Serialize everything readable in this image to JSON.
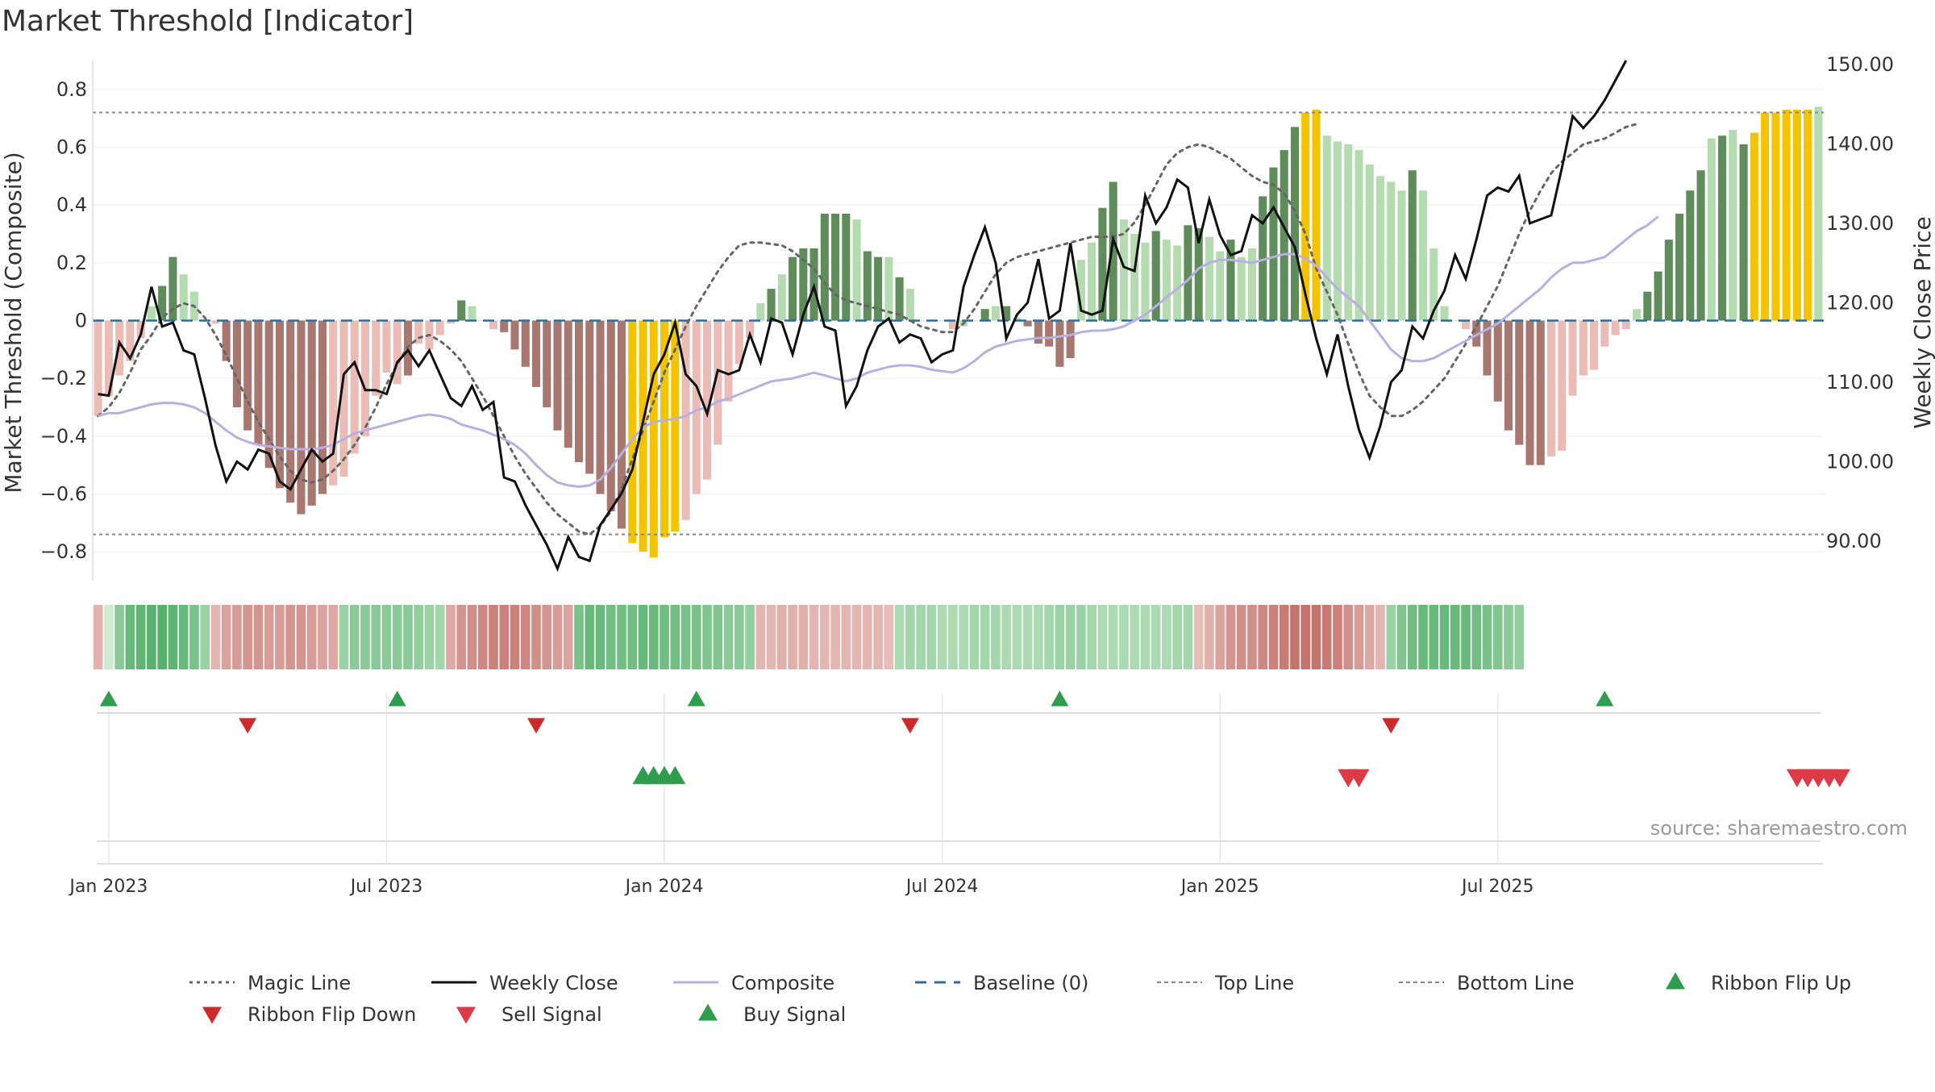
{
  "chart_data": {
    "type": "bar",
    "title": "Market Threshold [Indicator]",
    "ylabel": "Market Threshold (Composite)",
    "y2label": "Weekly Close Price",
    "source": "source: sharemaestro.com",
    "ylim": [
      -0.9,
      0.9
    ],
    "y2lim": [
      85,
      150.5
    ],
    "y_ticks": [
      -0.8,
      -0.6,
      -0.4,
      -0.2,
      0,
      0.2,
      0.4,
      0.6,
      0.8
    ],
    "y_tick_labels": [
      "−0.8",
      "−0.6",
      "−0.4",
      "−0.2",
      "0",
      "0.2",
      "0.4",
      "0.6",
      "0.8"
    ],
    "y2_ticks": [
      90,
      100,
      110,
      120,
      130,
      140,
      150
    ],
    "y2_tick_labels": [
      "90.00",
      "100.00",
      "110.00",
      "120.00",
      "130.00",
      "140.00",
      "150.00"
    ],
    "x_ticks": [
      {
        "label": "Jan 2023",
        "week": 1
      },
      {
        "label": "Jul 2023",
        "week": 27
      },
      {
        "label": "Jan 2024",
        "week": 53
      },
      {
        "label": "Jul 2024",
        "week": 79
      },
      {
        "label": "Jan 2025",
        "week": 105
      },
      {
        "label": "Jul 2025",
        "week": 131
      }
    ],
    "top_line": 0.72,
    "bottom_line": -0.74,
    "baseline": 0,
    "colors": {
      "pos_strong": "#5e8c5a",
      "pos_weak": "#b5dcb0",
      "neg_strong": "#a87870",
      "neg_weak": "#ebbcb5",
      "extreme": "#f5c400",
      "weekly_close": "#111111",
      "composite": "#b8b0e0",
      "magic_line": "#666666",
      "baseline": "#2e6e99",
      "threshold_lines": "#888888",
      "flip_up": "#2e9e4e",
      "flip_down": "#cc2b2b",
      "sell": "#dd3a48",
      "buy": "#2e9e4e"
    },
    "bars": [
      -0.33,
      -0.26,
      -0.19,
      -0.14,
      -0.06,
      0.05,
      0.12,
      0.22,
      0.16,
      0.1,
      0,
      -0.01,
      -0.14,
      -0.3,
      -0.38,
      -0.43,
      -0.51,
      -0.58,
      -0.63,
      -0.67,
      -0.64,
      -0.6,
      -0.57,
      -0.54,
      -0.46,
      -0.4,
      -0.26,
      -0.18,
      -0.22,
      -0.19,
      -0.08,
      -0.1,
      -0.05,
      -0.01,
      0.07,
      0.05,
      0,
      -0.03,
      -0.04,
      -0.1,
      -0.16,
      -0.23,
      -0.3,
      -0.38,
      -0.44,
      -0.49,
      -0.53,
      -0.6,
      -0.66,
      -0.72,
      -0.77,
      -0.8,
      -0.82,
      -0.75,
      -0.73,
      -0.69,
      -0.6,
      -0.55,
      -0.43,
      -0.28,
      -0.15,
      -0.06,
      0.06,
      0.11,
      0.16,
      0.22,
      0.25,
      0.25,
      0.37,
      0.37,
      0.37,
      0.35,
      0.24,
      0.22,
      0.22,
      0.15,
      0.11,
      0,
      0,
      0,
      -0.03,
      -0.02,
      0,
      0.04,
      0.05,
      0.05,
      0.01,
      -0.02,
      -0.08,
      -0.09,
      -0.16,
      -0.13,
      0.21,
      0.27,
      0.39,
      0.48,
      0.35,
      0.3,
      0.27,
      0.31,
      0.28,
      0.26,
      0.33,
      0.32,
      0.29,
      0.24,
      0.28,
      0.22,
      0.25,
      0.43,
      0.53,
      0.59,
      0.67,
      0.72,
      0.73,
      0.64,
      0.62,
      0.61,
      0.59,
      0.54,
      0.5,
      0.48,
      0.45,
      0.52,
      0.45,
      0.25,
      0.05,
      0,
      -0.03,
      -0.09,
      -0.19,
      -0.28,
      -0.38,
      -0.43,
      -0.5,
      -0.5,
      -0.47,
      -0.45,
      -0.26,
      -0.19,
      -0.17,
      -0.09,
      -0.05,
      -0.03,
      0.04,
      0.1,
      0.17,
      0.28,
      0.37,
      0.45,
      0.52,
      0.63,
      0.64,
      0.66,
      0.61,
      0.65,
      0.72,
      0.72,
      0.73,
      0.73,
      0.73,
      0.74
    ],
    "bar_type": [
      "nw",
      "nw",
      "nw",
      "nw",
      "nw",
      "pw",
      "ps",
      "ps",
      "pw",
      "pw",
      "pw",
      "nw",
      "ns",
      "ns",
      "ns",
      "ns",
      "ns",
      "ns",
      "ns",
      "ns",
      "ns",
      "ns",
      "nw",
      "nw",
      "nw",
      "nw",
      "nw",
      "nw",
      "nw",
      "ns",
      "nw",
      "nw",
      "nw",
      "nw",
      "ps",
      "pw",
      "pw",
      "nw",
      "ns",
      "ns",
      "ns",
      "ns",
      "ns",
      "ns",
      "ns",
      "ns",
      "ns",
      "ns",
      "ns",
      "ns",
      "ex",
      "ex",
      "ex",
      "ex",
      "ex",
      "nw",
      "nw",
      "nw",
      "nw",
      "nw",
      "nw",
      "nw",
      "pw",
      "ps",
      "pw",
      "ps",
      "ps",
      "ps",
      "ps",
      "ps",
      "ps",
      "pw",
      "ps",
      "ps",
      "pw",
      "ps",
      "pw",
      "pw",
      "pw",
      "nw",
      "nw",
      "pw",
      "pw",
      "ps",
      "pw",
      "ps",
      "pw",
      "ns",
      "ns",
      "ns",
      "ns",
      "ns",
      "pw",
      "pw",
      "ps",
      "ps",
      "pw",
      "pw",
      "pw",
      "ps",
      "pw",
      "pw",
      "ps",
      "ps",
      "pw",
      "pw",
      "ps",
      "pw",
      "pw",
      "ps",
      "ps",
      "ps",
      "ps",
      "ex",
      "ex",
      "pw",
      "pw",
      "pw",
      "pw",
      "pw",
      "pw",
      "pw",
      "pw",
      "ps",
      "pw",
      "pw",
      "pw",
      "pw",
      "nw",
      "ns",
      "ns",
      "ns",
      "ns",
      "ns",
      "ns",
      "ns",
      "nw",
      "nw",
      "nw",
      "nw",
      "nw",
      "nw",
      "nw",
      "nw",
      "pw",
      "ps",
      "ps",
      "ps",
      "ps",
      "ps",
      "ps",
      "pw",
      "ps",
      "pw",
      "ps",
      "ex",
      "ex",
      "ex",
      "ex",
      "ex",
      "ex"
    ],
    "weekly_close": [
      108.5,
      108.3,
      115.0,
      113.0,
      116.0,
      122.0,
      117.0,
      117.5,
      114.0,
      113.5,
      108.0,
      102.0,
      97.5,
      100.0,
      99.0,
      101.5,
      101.0,
      97.5,
      96.5,
      99.0,
      101.5,
      100.0,
      101.0,
      111.0,
      112.5,
      109.0,
      109.0,
      108.5,
      112.5,
      114.0,
      112.0,
      114.0,
      111.0,
      108.0,
      107.0,
      109.5,
      106.5,
      107.5,
      98.0,
      97.5,
      94.5,
      92.0,
      89.5,
      86.5,
      90.5,
      88.0,
      87.5,
      92.0,
      94.0,
      96.0,
      99.0,
      105.0,
      111.0,
      113.5,
      117.5,
      111.0,
      109.5,
      106.0,
      111.5,
      111.0,
      111.5,
      116.0,
      112.5,
      118.0,
      117.5,
      113.5,
      118.5,
      122.0,
      117.0,
      116.5,
      107.0,
      109.5,
      114.0,
      117.0,
      118.0,
      115.0,
      116.0,
      115.5,
      112.5,
      113.5,
      114.0,
      122.0,
      126.0,
      129.5,
      125.0,
      115.5,
      118.5,
      120.0,
      125.5,
      118.0,
      119.0,
      127.5,
      119.0,
      118.5,
      119.0,
      128.0,
      124.5,
      124.0,
      133.5,
      130.0,
      132.0,
      135.5,
      134.5,
      127.5,
      133.0,
      128.5,
      126.0,
      126.5,
      131.0,
      130.0,
      132.0,
      129.5,
      127.0,
      121.0,
      115.5,
      111.0,
      116.0,
      109.5,
      104.0,
      100.5,
      104.5,
      110.0,
      111.5,
      117.0,
      115.5,
      119.0,
      121.5,
      126.0,
      123.0,
      128.0,
      133.5,
      134.5,
      134.0,
      136.0,
      130.0,
      130.5,
      131.0,
      137.0,
      143.5,
      142.0,
      143.5,
      145.5,
      148.0,
      150.5
    ],
    "composite": [
      -0.33,
      -0.32,
      -0.32,
      -0.31,
      -0.3,
      -0.29,
      -0.285,
      -0.285,
      -0.29,
      -0.3,
      -0.32,
      -0.35,
      -0.38,
      -0.405,
      -0.42,
      -0.43,
      -0.435,
      -0.44,
      -0.445,
      -0.445,
      -0.445,
      -0.44,
      -0.43,
      -0.41,
      -0.39,
      -0.38,
      -0.37,
      -0.36,
      -0.35,
      -0.34,
      -0.33,
      -0.325,
      -0.33,
      -0.34,
      -0.36,
      -0.37,
      -0.38,
      -0.395,
      -0.41,
      -0.43,
      -0.46,
      -0.5,
      -0.535,
      -0.56,
      -0.57,
      -0.575,
      -0.57,
      -0.55,
      -0.51,
      -0.46,
      -0.41,
      -0.37,
      -0.35,
      -0.345,
      -0.34,
      -0.33,
      -0.31,
      -0.3,
      -0.28,
      -0.27,
      -0.255,
      -0.24,
      -0.225,
      -0.21,
      -0.205,
      -0.2,
      -0.19,
      -0.18,
      -0.19,
      -0.2,
      -0.21,
      -0.2,
      -0.18,
      -0.17,
      -0.16,
      -0.155,
      -0.155,
      -0.16,
      -0.17,
      -0.175,
      -0.18,
      -0.165,
      -0.14,
      -0.11,
      -0.09,
      -0.08,
      -0.07,
      -0.065,
      -0.06,
      -0.06,
      -0.055,
      -0.05,
      -0.04,
      -0.035,
      -0.035,
      -0.03,
      -0.02,
      0,
      0.02,
      0.05,
      0.08,
      0.11,
      0.14,
      0.18,
      0.2,
      0.21,
      0.21,
      0.205,
      0.2,
      0.21,
      0.22,
      0.23,
      0.23,
      0.215,
      0.19,
      0.15,
      0.11,
      0.08,
      0.05,
      0,
      -0.05,
      -0.1,
      -0.13,
      -0.14,
      -0.14,
      -0.13,
      -0.11,
      -0.09,
      -0.07,
      -0.05,
      -0.03,
      -0.01,
      0.02,
      0.05,
      0.08,
      0.11,
      0.15,
      0.18,
      0.2,
      0.2,
      0.21,
      0.22,
      0.25,
      0.28,
      0.31,
      0.33,
      0.36
    ],
    "magic_line": [
      -0.33,
      -0.3,
      -0.25,
      -0.18,
      -0.1,
      -0.05,
      0.01,
      0.04,
      0.06,
      0.05,
      0.01,
      -0.05,
      -0.12,
      -0.2,
      -0.28,
      -0.35,
      -0.41,
      -0.47,
      -0.52,
      -0.55,
      -0.56,
      -0.55,
      -0.52,
      -0.48,
      -0.43,
      -0.37,
      -0.3,
      -0.22,
      -0.15,
      -0.09,
      -0.06,
      -0.05,
      -0.07,
      -0.1,
      -0.14,
      -0.2,
      -0.26,
      -0.33,
      -0.4,
      -0.47,
      -0.53,
      -0.58,
      -0.63,
      -0.67,
      -0.7,
      -0.73,
      -0.74,
      -0.71,
      -0.66,
      -0.58,
      -0.48,
      -0.38,
      -0.28,
      -0.18,
      -0.1,
      -0.02,
      0.05,
      0.11,
      0.17,
      0.22,
      0.26,
      0.27,
      0.27,
      0.265,
      0.26,
      0.24,
      0.21,
      0.18,
      0.13,
      0.09,
      0.07,
      0.06,
      0.05,
      0.04,
      0.03,
      0.02,
      0,
      -0.02,
      -0.03,
      -0.04,
      -0.04,
      -0.01,
      0.04,
      0.1,
      0.16,
      0.2,
      0.22,
      0.23,
      0.24,
      0.25,
      0.26,
      0.27,
      0.28,
      0.29,
      0.29,
      0.29,
      0.3,
      0.34,
      0.4,
      0.47,
      0.54,
      0.58,
      0.6,
      0.61,
      0.6,
      0.58,
      0.56,
      0.53,
      0.5,
      0.48,
      0.47,
      0.44,
      0.38,
      0.3,
      0.18,
      0.1,
      0.02,
      -0.08,
      -0.18,
      -0.26,
      -0.3,
      -0.33,
      -0.33,
      -0.31,
      -0.28,
      -0.24,
      -0.2,
      -0.14,
      -0.08,
      -0.02,
      0.05,
      0.12,
      0.21,
      0.3,
      0.38,
      0.45,
      0.51,
      0.55,
      0.58,
      0.61,
      0.62,
      0.63,
      0.65,
      0.67,
      0.68
    ],
    "ribbon": [
      -0.33,
      0.1,
      0.5,
      0.7,
      0.75,
      0.8,
      0.8,
      0.75,
      0.7,
      0.6,
      0.4,
      -0.3,
      -0.45,
      -0.5,
      -0.55,
      -0.55,
      -0.5,
      -0.5,
      -0.55,
      -0.55,
      -0.5,
      -0.45,
      -0.4,
      0.4,
      0.5,
      0.5,
      0.5,
      0.5,
      0.5,
      0.5,
      0.45,
      0.4,
      0.35,
      -0.4,
      -0.55,
      -0.6,
      -0.65,
      -0.7,
      -0.7,
      -0.7,
      -0.65,
      -0.6,
      -0.55,
      -0.5,
      -0.45,
      0.6,
      0.7,
      0.7,
      0.65,
      0.65,
      0.65,
      0.7,
      0.7,
      0.65,
      0.65,
      0.6,
      0.6,
      0.55,
      0.55,
      0.5,
      0.5,
      0.45,
      -0.3,
      -0.3,
      -0.35,
      -0.35,
      -0.35,
      -0.3,
      -0.3,
      -0.3,
      -0.3,
      -0.3,
      -0.3,
      -0.3,
      -0.25,
      0.3,
      0.35,
      0.35,
      0.35,
      0.3,
      0.3,
      0.3,
      0.35,
      0.35,
      0.35,
      0.3,
      0.3,
      0.3,
      0.3,
      0.35,
      0.4,
      0.4,
      0.4,
      0.35,
      0.3,
      0.3,
      0.3,
      0.3,
      0.3,
      0.3,
      0.3,
      0.35,
      0.35,
      -0.25,
      -0.35,
      -0.45,
      -0.55,
      -0.6,
      -0.6,
      -0.65,
      -0.7,
      -0.75,
      -0.8,
      -0.8,
      -0.8,
      -0.75,
      -0.7,
      -0.6,
      -0.5,
      -0.4,
      -0.3,
      0.4,
      0.55,
      0.65,
      0.7,
      0.7,
      0.7,
      0.7,
      0.7,
      0.65,
      0.6,
      0.55,
      0.5,
      0.45
    ],
    "ribbon_flip_up": [
      1,
      28,
      56,
      90,
      141
    ],
    "ribbon_flip_down": [
      14,
      41,
      76,
      121
    ],
    "buy_signal": [
      51,
      52,
      53,
      54
    ],
    "sell_signal": [
      117,
      118,
      159,
      160,
      161,
      162,
      163
    ],
    "legend": [
      {
        "key": "magic_line",
        "label": "Magic Line",
        "style": "dotted"
      },
      {
        "key": "weekly_close",
        "label": "Weekly Close",
        "style": "solid"
      },
      {
        "key": "composite",
        "label": "Composite",
        "style": "solid-light"
      },
      {
        "key": "baseline",
        "label": "Baseline (0)",
        "style": "dashed"
      },
      {
        "key": "top_line",
        "label": "Top Line",
        "style": "fine-dash"
      },
      {
        "key": "bottom_line",
        "label": "Bottom Line",
        "style": "fine-dash"
      },
      {
        "key": "flip_up",
        "label": "Ribbon Flip Up",
        "style": "triangle-up"
      },
      {
        "key": "flip_down",
        "label": "Ribbon Flip Down",
        "style": "triangle-down"
      },
      {
        "key": "sell",
        "label": "Sell Signal",
        "style": "triangle-down"
      },
      {
        "key": "buy",
        "label": "Buy Signal",
        "style": "triangle-up"
      }
    ]
  }
}
